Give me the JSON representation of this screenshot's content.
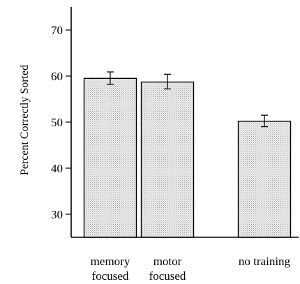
{
  "chart_data": {
    "type": "bar",
    "title": "",
    "xlabel": "",
    "ylabel": "Percent Correctly Sorted",
    "categories": [
      [
        "memory",
        "focused"
      ],
      [
        "motor",
        "focused"
      ],
      [
        "no training"
      ]
    ],
    "values": [
      59.5,
      58.7,
      50.2
    ],
    "error_low": [
      58.2,
      57.2,
      49.0
    ],
    "error_high": [
      60.9,
      60.4,
      51.5
    ],
    "ylim": [
      25,
      75
    ],
    "yticks": [
      30,
      40,
      50,
      60,
      70
    ],
    "grid": false,
    "legend": "none",
    "bar_fill": "#e6e6e6",
    "bar_pattern": "stipple"
  }
}
